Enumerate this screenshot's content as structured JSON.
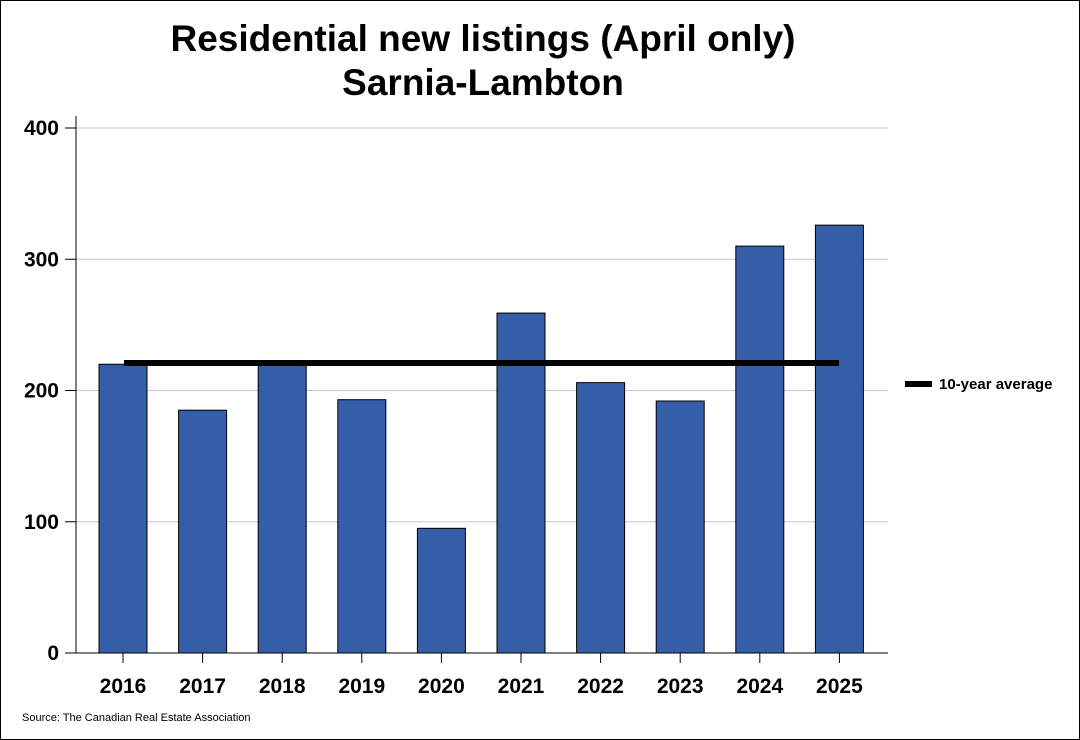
{
  "colors": {
    "bar_fill": "#355ea8",
    "bar_stroke": "#000000",
    "average_line": "#000000",
    "gridline": "#c8c8c8",
    "background": "#ffffff"
  },
  "source_note": "Source: The Canadian Real Estate Association",
  "chart_data": {
    "type": "bar",
    "title": "Residential new listings (April only)",
    "subtitle": "Sarnia-Lambton",
    "categories": [
      "2016",
      "2017",
      "2018",
      "2019",
      "2020",
      "2021",
      "2022",
      "2023",
      "2024",
      "2025"
    ],
    "series": [
      {
        "name": "New listings",
        "values": [
          220,
          185,
          222,
          193,
          95,
          259,
          206,
          192,
          310,
          326
        ]
      }
    ],
    "reference_lines": [
      {
        "name": "10-year average",
        "value": 221
      }
    ],
    "legend": [
      {
        "label": "10-year average",
        "placement": "right"
      }
    ],
    "ylim": [
      0,
      400
    ],
    "yticks": [
      0,
      100,
      200,
      300,
      400
    ],
    "xlabel": "",
    "ylabel": "",
    "grid": true
  }
}
